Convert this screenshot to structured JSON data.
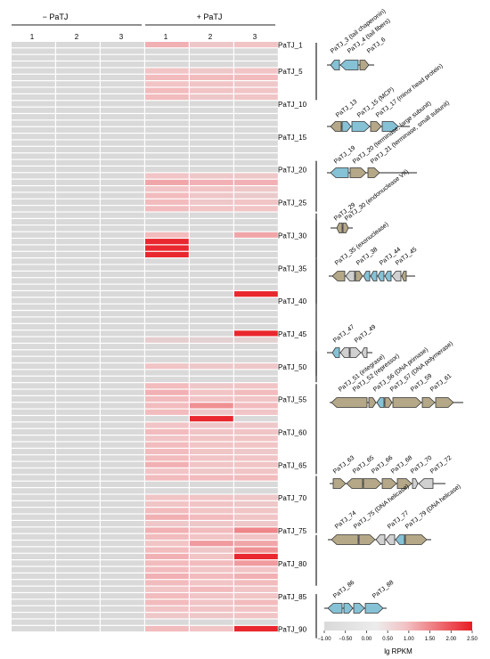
{
  "groups": {
    "minus": {
      "label": "− PaTJ",
      "replicates": [
        "1",
        "2",
        "3"
      ]
    },
    "plus": {
      "label": "+ PaTJ",
      "replicates": [
        "1",
        "2",
        "3"
      ]
    }
  },
  "colorscale": {
    "title": "lg RPKM",
    "ticks": [
      "−1.00",
      "−0.50",
      "0.00",
      "0.50",
      "1.00",
      "1.50",
      "2.00",
      "2.50"
    ],
    "min": -1.0,
    "max": 2.5,
    "colors": {
      "low": "#d9d9d9",
      "mid": "#f2c3c5",
      "high": "#e81c24"
    }
  },
  "row_labels": [
    "PaTJ_1",
    "PaTJ_5",
    "PaTJ_10",
    "PaTJ_15",
    "PaTJ_20",
    "PaTJ_25",
    "PaTJ_30",
    "PaTJ_35",
    "PaTJ_40",
    "PaTJ_45",
    "PaTJ_50",
    "PaTJ_55",
    "PaTJ_60",
    "PaTJ_65",
    "PaTJ_70",
    "PaTJ_75",
    "PaTJ_80",
    "PaTJ_85",
    "PaTJ_90"
  ],
  "heatmap": {
    "rows": 90,
    "minus_value": -1.0,
    "plus_values": [
      [
        1.1,
        0.8,
        0.9
      ],
      [
        -1,
        -1,
        -1
      ],
      [
        -1,
        -1,
        -1
      ],
      [
        -1,
        -1,
        -1
      ],
      [
        0.9,
        0.8,
        0.9
      ],
      [
        1.0,
        1.0,
        1.0
      ],
      [
        0.9,
        0.9,
        0.8
      ],
      [
        1.0,
        0.9,
        0.9
      ],
      [
        1.0,
        0.8,
        0.9
      ],
      [
        -1,
        -1,
        -1
      ],
      [
        -1,
        -1,
        -1
      ],
      [
        -1,
        -1,
        -1
      ],
      [
        -1,
        -1,
        -1
      ],
      [
        -1,
        -1,
        -1
      ],
      [
        -1,
        -1,
        -1
      ],
      [
        -1,
        -1,
        -1
      ],
      [
        -1,
        -1,
        -1
      ],
      [
        -1,
        -1,
        -1
      ],
      [
        -1,
        -1,
        -1
      ],
      [
        -1,
        -1,
        -1
      ],
      [
        0.9,
        0.8,
        0.8
      ],
      [
        1.2,
        1.1,
        1.1
      ],
      [
        0.9,
        0.9,
        0.8
      ],
      [
        1.0,
        0.8,
        0.7
      ],
      [
        1.0,
        0.8,
        0.9
      ],
      [
        1.0,
        0.9,
        0.9
      ],
      [
        -1,
        -1,
        -1
      ],
      [
        -1,
        -1,
        -1
      ],
      [
        -1,
        -1,
        -1
      ],
      [
        1.0,
        -1,
        1.2
      ],
      [
        2.4,
        -1,
        -1
      ],
      [
        2.4,
        -1,
        -1
      ],
      [
        2.4,
        -1,
        -1
      ],
      [
        -1,
        -1,
        -1
      ],
      [
        -1,
        -1,
        -1
      ],
      [
        -1,
        -1,
        -1
      ],
      [
        -1,
        -1,
        -1
      ],
      [
        -1,
        -1,
        -1
      ],
      [
        -1,
        -1,
        2.4
      ],
      [
        -1,
        -1,
        -1
      ],
      [
        -1,
        -1,
        -1
      ],
      [
        -1,
        -1,
        -1
      ],
      [
        -1,
        -1,
        -1
      ],
      [
        -1,
        -1,
        -1
      ],
      [
        -1,
        -1,
        2.4
      ],
      [
        0.6,
        0.5,
        0.5
      ],
      [
        -1,
        -1,
        -1
      ],
      [
        -1,
        -1,
        -1
      ],
      [
        -1,
        -1,
        -1
      ],
      [
        0.9,
        0.8,
        0.8
      ],
      [
        -1,
        -1,
        -1
      ],
      [
        -1,
        -1,
        -1
      ],
      [
        1.0,
        0.8,
        0.9
      ],
      [
        1.1,
        0.9,
        1.0
      ],
      [
        1.0,
        0.9,
        0.9
      ],
      [
        1.0,
        1.4,
        1.0
      ],
      [
        1.0,
        0.8,
        0.9
      ],
      [
        -1,
        2.4,
        -1
      ],
      [
        0.9,
        0.8,
        0.8
      ],
      [
        1.0,
        0.9,
        0.9
      ],
      [
        0.9,
        0.9,
        0.9
      ],
      [
        1.0,
        0.9,
        0.9
      ],
      [
        1.0,
        0.9,
        0.8
      ],
      [
        1.0,
        0.9,
        0.9
      ],
      [
        1.1,
        0.9,
        0.9
      ],
      [
        0.9,
        0.8,
        0.9
      ],
      [
        1.0,
        1.0,
        1.0
      ],
      [
        -1,
        -1,
        -1
      ],
      [
        -1,
        -1,
        -1
      ],
      [
        0.9,
        0.9,
        0.8
      ],
      [
        0.9,
        0.9,
        0.8
      ],
      [
        1.0,
        0.9,
        0.9
      ],
      [
        1.1,
        1.0,
        0.9
      ],
      [
        0.8,
        0.8,
        0.8
      ],
      [
        1.1,
        1.0,
        1.5
      ],
      [
        1.0,
        0.9,
        0.9
      ],
      [
        0.9,
        1.3,
        1.2
      ],
      [
        1.0,
        0.8,
        1.4
      ],
      [
        1.1,
        0.9,
        2.4
      ],
      [
        1.0,
        1.0,
        1.3
      ],
      [
        1.0,
        0.9,
        0.9
      ],
      [
        1.1,
        1.0,
        1.1
      ],
      [
        1.0,
        0.9,
        1.0
      ],
      [
        0.9,
        1.0,
        0.9
      ],
      [
        1.0,
        0.9,
        0.9
      ],
      [
        1.0,
        0.9,
        1.0
      ],
      [
        0.9,
        0.9,
        0.9
      ],
      [
        0.8,
        0.8,
        0.9
      ],
      [
        -1,
        -1,
        -1
      ],
      [
        1.0,
        0.9,
        2.4
      ]
    ]
  },
  "clusters": [
    {
      "genes": [
        "PaTJ_3 (tail chaperonin)",
        "PaTJ_4 (tail fibers)",
        "PaTJ_6"
      ]
    },
    {
      "genes": [
        "PaTJ_13",
        "PaTJ_15 (MCP)",
        "PaTJ_17 (minor head protein)"
      ]
    },
    {
      "genes": [
        "PaTJ_19",
        "PaTJ_20 (terminase, large subunit)",
        "PaTJ_21 (terminase, small subunit)"
      ]
    },
    {
      "genes": [
        "PaTJ_29",
        "PaTJ_30 (endonuclease VII)"
      ]
    },
    {
      "genes": [
        "PaTJ_35 (exonuclease)",
        "PaTJ_38",
        "PaTJ_44",
        "PaTJ_45"
      ]
    },
    {
      "genes": [
        "PaTJ_47",
        "PaTJ_49"
      ]
    },
    {
      "genes": [
        "PaTJ_51 (integrase)",
        "PaTJ_52 (repressor)",
        "PaTJ_56 (DNA primase)",
        "PaTJ_57 (DNA polymerase)",
        "PaTJ_59",
        "PaTJ_61"
      ]
    },
    {
      "genes": [
        "PaTJ_63",
        "PaTJ_65",
        "PaTJ_66",
        "PaTJ_68",
        "PaTJ_70",
        "PaTJ_72"
      ]
    },
    {
      "genes": [
        "PaTJ_74",
        "PaTJ_75 (DNA helicase)",
        "PaTJ_77",
        "PaTJ_79 (DNA helicase)"
      ]
    },
    {
      "genes": [
        "PaTJ_86",
        "PaTJ_88"
      ]
    }
  ],
  "gene_colors": {
    "structural": "#86c2d6",
    "other": "#b4a888",
    "hypothetical": "#d0d0d0"
  }
}
